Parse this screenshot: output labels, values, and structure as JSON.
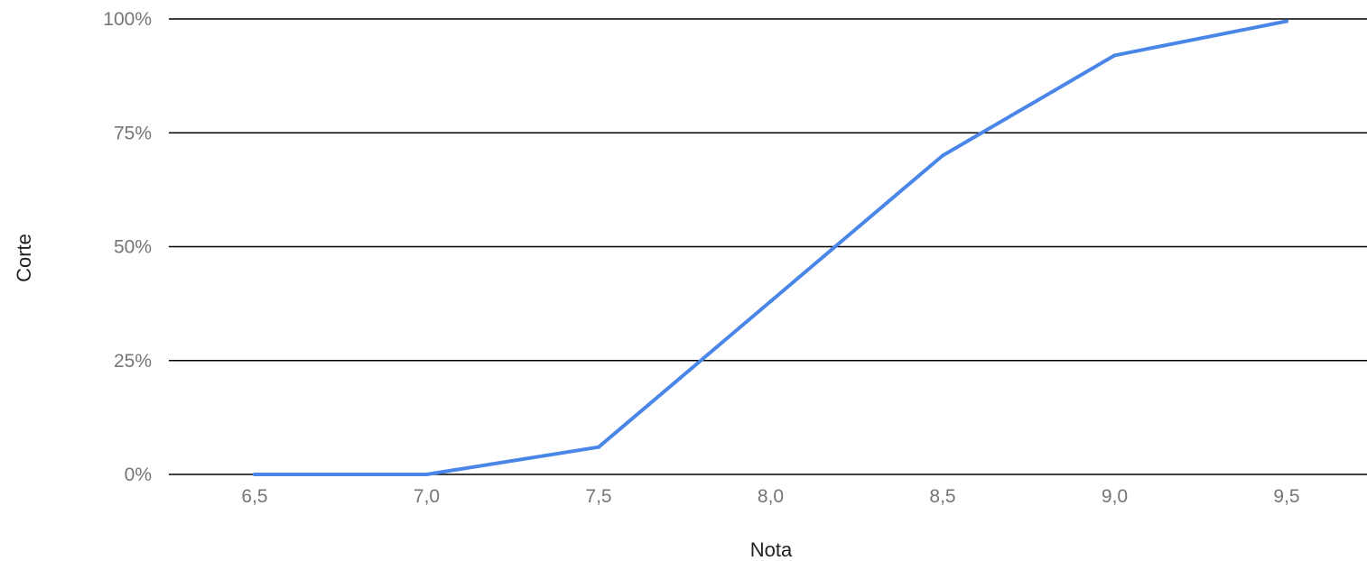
{
  "chart_data": {
    "type": "line",
    "title": "",
    "xlabel": "Nota",
    "ylabel": "Corte",
    "x": [
      6.5,
      7.0,
      7.5,
      8.0,
      8.5,
      9.0,
      9.5
    ],
    "x_tick_labels": [
      "6,5",
      "7,0",
      "7,5",
      "8,0",
      "8,5",
      "9,0",
      "9,5"
    ],
    "y_ticks": [
      0,
      25,
      50,
      75,
      100
    ],
    "y_tick_labels": [
      "0%",
      "25%",
      "50%",
      "75%",
      "100%"
    ],
    "ylim": [
      0,
      100
    ],
    "grid": true,
    "legend": "none",
    "series": [
      {
        "values": [
          0,
          0,
          6,
          38,
          70,
          92,
          99.5
        ],
        "color": "#4a86e8"
      }
    ],
    "gridline_color": "#000000"
  }
}
